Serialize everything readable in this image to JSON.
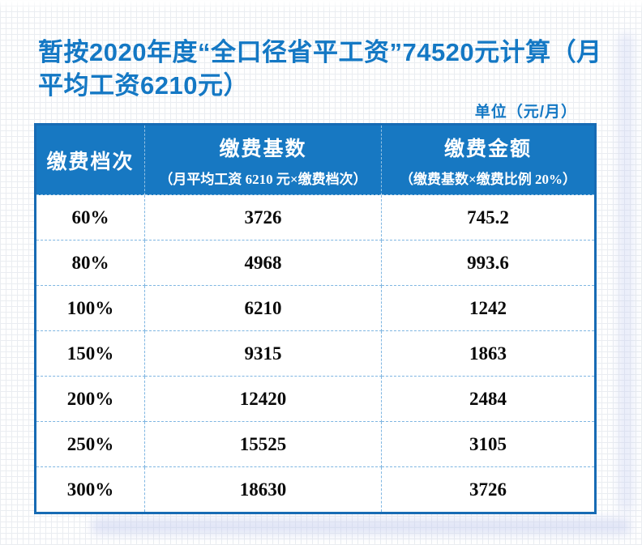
{
  "page": {
    "title": "暂按2020年度“全口径省平工资”74520元计算（月平均工资6210元）",
    "unit_label": "单位（元/月）"
  },
  "colors": {
    "accent_blue": "#1478c4",
    "header_bg": "#1778c2",
    "table_border": "#176bb4",
    "cell_divider": "#7fb6e2",
    "body_text": "#0a0a0a",
    "shadow_lavender": "#c6cdee"
  },
  "table": {
    "columns": [
      {
        "label": "缴费档次",
        "sublabel": ""
      },
      {
        "label": "缴费基数",
        "sublabel": "（月平均工资 6210 元×缴费档次）"
      },
      {
        "label": "缴费金额",
        "sublabel": "（缴费基数×缴费比例 20%）"
      }
    ],
    "rows": [
      [
        "60%",
        "3726",
        "745.2"
      ],
      [
        "80%",
        "4968",
        "993.6"
      ],
      [
        "100%",
        "6210",
        "1242"
      ],
      [
        "150%",
        "9315",
        "1863"
      ],
      [
        "200%",
        "12420",
        "2484"
      ],
      [
        "250%",
        "15525",
        "3105"
      ],
      [
        "300%",
        "18630",
        "3726"
      ]
    ]
  }
}
